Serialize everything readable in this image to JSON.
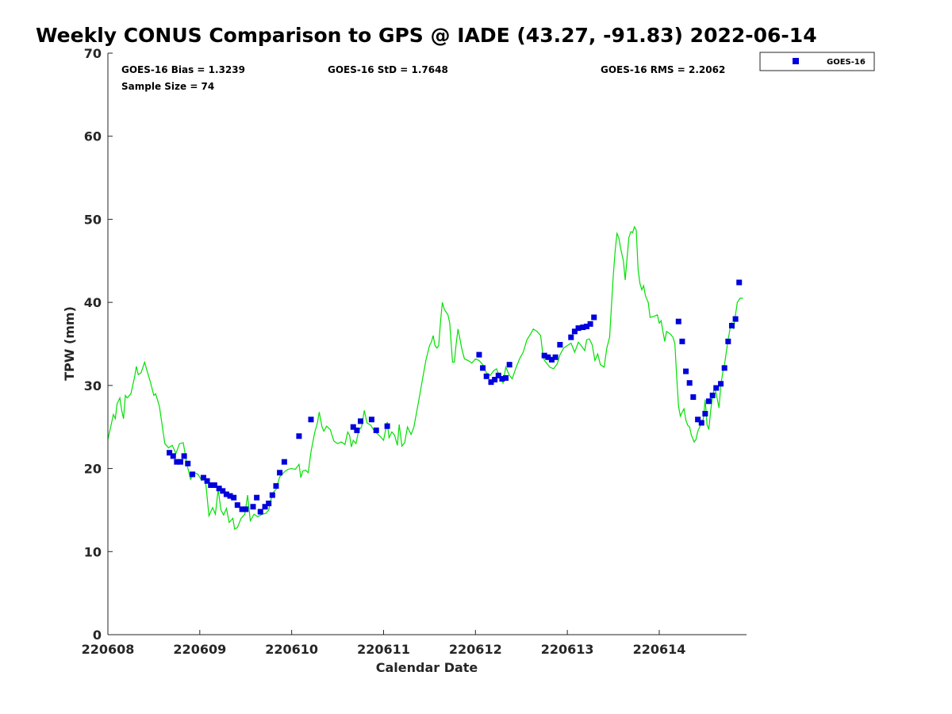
{
  "chart_data": {
    "type": "scatter",
    "title": "Weekly CONUS Comparison to GPS @ IADE (43.27, -91.83) 2022-06-14",
    "xlabel": "Calendar Date",
    "ylabel": "TPW (mm)",
    "xlim": [
      0,
      6.95
    ],
    "ylim": [
      0,
      70
    ],
    "x_tick_values": [
      0,
      1,
      2,
      3,
      4,
      5,
      6
    ],
    "x_tick_labels": [
      "220608",
      "220609",
      "220610",
      "220611",
      "220612",
      "220613",
      "220614"
    ],
    "y_ticks": [
      0,
      10,
      20,
      30,
      40,
      50,
      60,
      70
    ],
    "x_unit_note": "days from 220608 00Z",
    "stats": {
      "bias": "GOES-16 Bias = 1.3239",
      "std": "GOES-16 StD = 1.7648",
      "rms": "GOES-16 RMS = 2.2062",
      "sample": "Sample Size = 74"
    },
    "legend": {
      "label": "GOES-16",
      "position": "outside-top-right"
    },
    "colors": {
      "series": "#0000dd",
      "gps_line": "#00e000"
    },
    "series": [
      {
        "name": "GOES-16",
        "marker": "square",
        "points": [
          [
            0.67,
            21.9
          ],
          [
            0.71,
            21.5
          ],
          [
            0.75,
            20.8
          ],
          [
            0.79,
            20.8
          ],
          [
            0.83,
            21.5
          ],
          [
            0.87,
            20.6
          ],
          [
            0.92,
            19.3
          ],
          [
            1.04,
            18.9
          ],
          [
            1.08,
            18.5
          ],
          [
            1.12,
            18.0
          ],
          [
            1.16,
            18.0
          ],
          [
            1.21,
            17.6
          ],
          [
            1.25,
            17.3
          ],
          [
            1.29,
            16.9
          ],
          [
            1.33,
            16.7
          ],
          [
            1.37,
            16.5
          ],
          [
            1.41,
            15.6
          ],
          [
            1.46,
            15.1
          ],
          [
            1.5,
            15.1
          ],
          [
            1.58,
            15.4
          ],
          [
            1.62,
            16.5
          ],
          [
            1.66,
            14.8
          ],
          [
            1.71,
            15.4
          ],
          [
            1.75,
            15.8
          ],
          [
            1.79,
            16.8
          ],
          [
            1.83,
            17.9
          ],
          [
            1.87,
            19.5
          ],
          [
            1.92,
            20.8
          ],
          [
            2.08,
            23.9
          ],
          [
            2.21,
            25.9
          ],
          [
            2.67,
            25.0
          ],
          [
            2.71,
            24.6
          ],
          [
            2.75,
            25.7
          ],
          [
            2.87,
            25.9
          ],
          [
            2.92,
            24.6
          ],
          [
            3.04,
            25.1
          ],
          [
            4.04,
            33.7
          ],
          [
            4.08,
            32.1
          ],
          [
            4.12,
            31.1
          ],
          [
            4.17,
            30.4
          ],
          [
            4.21,
            30.7
          ],
          [
            4.25,
            31.2
          ],
          [
            4.29,
            30.8
          ],
          [
            4.33,
            30.9
          ],
          [
            4.37,
            32.5
          ],
          [
            4.75,
            33.6
          ],
          [
            4.79,
            33.4
          ],
          [
            4.83,
            33.1
          ],
          [
            4.87,
            33.4
          ],
          [
            4.92,
            34.9
          ],
          [
            5.04,
            35.8
          ],
          [
            5.08,
            36.5
          ],
          [
            5.12,
            36.9
          ],
          [
            5.17,
            37.0
          ],
          [
            5.21,
            37.1
          ],
          [
            5.25,
            37.4
          ],
          [
            5.29,
            38.2
          ],
          [
            6.21,
            37.7
          ],
          [
            6.25,
            35.3
          ],
          [
            6.29,
            31.7
          ],
          [
            6.33,
            30.3
          ],
          [
            6.37,
            28.6
          ],
          [
            6.42,
            25.9
          ],
          [
            6.46,
            25.5
          ],
          [
            6.5,
            26.6
          ],
          [
            6.54,
            28.1
          ],
          [
            6.58,
            28.8
          ],
          [
            6.62,
            29.7
          ],
          [
            6.67,
            30.2
          ],
          [
            6.71,
            32.1
          ],
          [
            6.75,
            35.3
          ],
          [
            6.79,
            37.2
          ],
          [
            6.83,
            38.0
          ],
          [
            6.87,
            42.4
          ]
        ]
      },
      {
        "name": "",
        "type": "line",
        "points": [
          [
            0.0,
            23.5
          ],
          [
            0.03,
            25.0
          ],
          [
            0.06,
            26.5
          ],
          [
            0.08,
            26.0
          ],
          [
            0.1,
            27.8
          ],
          [
            0.13,
            28.5
          ],
          [
            0.15,
            27.0
          ],
          [
            0.17,
            26.0
          ],
          [
            0.19,
            28.8
          ],
          [
            0.21,
            28.5
          ],
          [
            0.25,
            29.0
          ],
          [
            0.29,
            31.0
          ],
          [
            0.31,
            32.3
          ],
          [
            0.33,
            31.3
          ],
          [
            0.36,
            31.5
          ],
          [
            0.4,
            32.8
          ],
          [
            0.42,
            32.0
          ],
          [
            0.46,
            30.5
          ],
          [
            0.5,
            28.8
          ],
          [
            0.52,
            29.0
          ],
          [
            0.56,
            27.5
          ],
          [
            0.58,
            26.0
          ],
          [
            0.62,
            23.0
          ],
          [
            0.66,
            22.5
          ],
          [
            0.7,
            22.8
          ],
          [
            0.74,
            21.8
          ],
          [
            0.78,
            23.0
          ],
          [
            0.82,
            23.1
          ],
          [
            0.86,
            20.5
          ],
          [
            0.9,
            18.7
          ],
          [
            0.94,
            19.5
          ],
          [
            0.98,
            19.3
          ],
          [
            1.02,
            18.6
          ],
          [
            1.06,
            18.8
          ],
          [
            1.1,
            14.3
          ],
          [
            1.14,
            15.3
          ],
          [
            1.17,
            14.5
          ],
          [
            1.2,
            17.5
          ],
          [
            1.23,
            15.0
          ],
          [
            1.26,
            14.4
          ],
          [
            1.29,
            15.2
          ],
          [
            1.32,
            13.5
          ],
          [
            1.36,
            14.0
          ],
          [
            1.38,
            12.7
          ],
          [
            1.41,
            12.9
          ],
          [
            1.45,
            14.0
          ],
          [
            1.49,
            14.5
          ],
          [
            1.52,
            16.8
          ],
          [
            1.55,
            13.7
          ],
          [
            1.59,
            14.5
          ],
          [
            1.63,
            14.2
          ],
          [
            1.68,
            14.5
          ],
          [
            1.72,
            14.6
          ],
          [
            1.75,
            15.0
          ],
          [
            1.79,
            17.0
          ],
          [
            1.83,
            17.5
          ],
          [
            1.87,
            19.0
          ],
          [
            1.92,
            19.6
          ],
          [
            1.96,
            19.9
          ],
          [
            2.0,
            20.0
          ],
          [
            2.04,
            19.9
          ],
          [
            2.08,
            20.5
          ],
          [
            2.1,
            18.9
          ],
          [
            2.12,
            19.7
          ],
          [
            2.15,
            19.8
          ],
          [
            2.18,
            19.5
          ],
          [
            2.21,
            22.0
          ],
          [
            2.25,
            24.3
          ],
          [
            2.28,
            25.5
          ],
          [
            2.3,
            26.8
          ],
          [
            2.33,
            25.0
          ],
          [
            2.35,
            24.5
          ],
          [
            2.38,
            25.1
          ],
          [
            2.42,
            24.7
          ],
          [
            2.46,
            23.3
          ],
          [
            2.5,
            23.0
          ],
          [
            2.54,
            23.2
          ],
          [
            2.58,
            22.9
          ],
          [
            2.61,
            24.4
          ],
          [
            2.63,
            24.0
          ],
          [
            2.65,
            22.6
          ],
          [
            2.67,
            23.4
          ],
          [
            2.7,
            23.0
          ],
          [
            2.73,
            24.6
          ],
          [
            2.76,
            25.0
          ],
          [
            2.79,
            27.0
          ],
          [
            2.82,
            25.5
          ],
          [
            2.86,
            25.2
          ],
          [
            2.89,
            24.7
          ],
          [
            2.92,
            24.3
          ],
          [
            2.96,
            23.9
          ],
          [
            3.0,
            23.4
          ],
          [
            3.04,
            25.6
          ],
          [
            3.06,
            23.7
          ],
          [
            3.09,
            24.4
          ],
          [
            3.12,
            24.0
          ],
          [
            3.15,
            22.8
          ],
          [
            3.17,
            25.3
          ],
          [
            3.2,
            22.7
          ],
          [
            3.23,
            23.1
          ],
          [
            3.26,
            25.0
          ],
          [
            3.3,
            24.1
          ],
          [
            3.33,
            25.0
          ],
          [
            3.38,
            28.0
          ],
          [
            3.42,
            30.5
          ],
          [
            3.46,
            33.0
          ],
          [
            3.5,
            34.8
          ],
          [
            3.52,
            35.2
          ],
          [
            3.54,
            36.0
          ],
          [
            3.56,
            34.8
          ],
          [
            3.58,
            34.5
          ],
          [
            3.6,
            34.8
          ],
          [
            3.62,
            37.7
          ],
          [
            3.64,
            40.0
          ],
          [
            3.66,
            39.2
          ],
          [
            3.7,
            38.5
          ],
          [
            3.72,
            37.5
          ],
          [
            3.75,
            32.8
          ],
          [
            3.77,
            32.8
          ],
          [
            3.79,
            35.0
          ],
          [
            3.81,
            36.8
          ],
          [
            3.83,
            35.7
          ],
          [
            3.85,
            34.5
          ],
          [
            3.88,
            33.2
          ],
          [
            3.92,
            33.0
          ],
          [
            3.96,
            32.7
          ],
          [
            4.0,
            33.2
          ],
          [
            4.04,
            33.0
          ],
          [
            4.08,
            32.5
          ],
          [
            4.12,
            31.5
          ],
          [
            4.16,
            31.2
          ],
          [
            4.2,
            31.8
          ],
          [
            4.23,
            32.0
          ],
          [
            4.27,
            30.8
          ],
          [
            4.3,
            30.3
          ],
          [
            4.33,
            32.2
          ],
          [
            4.37,
            31.2
          ],
          [
            4.4,
            30.8
          ],
          [
            4.44,
            32.1
          ],
          [
            4.48,
            33.2
          ],
          [
            4.52,
            34.0
          ],
          [
            4.56,
            35.5
          ],
          [
            4.6,
            36.2
          ],
          [
            4.63,
            36.8
          ],
          [
            4.67,
            36.5
          ],
          [
            4.71,
            36.0
          ],
          [
            4.73,
            34.0
          ],
          [
            4.75,
            33.0
          ],
          [
            4.78,
            32.6
          ],
          [
            4.81,
            32.2
          ],
          [
            4.85,
            32.0
          ],
          [
            4.89,
            32.6
          ],
          [
            4.92,
            33.7
          ],
          [
            4.96,
            34.5
          ],
          [
            5.0,
            34.8
          ],
          [
            5.04,
            35.1
          ],
          [
            5.08,
            34.0
          ],
          [
            5.12,
            35.2
          ],
          [
            5.15,
            34.8
          ],
          [
            5.19,
            34.2
          ],
          [
            5.21,
            35.5
          ],
          [
            5.24,
            35.6
          ],
          [
            5.27,
            34.9
          ],
          [
            5.3,
            33.0
          ],
          [
            5.33,
            33.8
          ],
          [
            5.36,
            32.5
          ],
          [
            5.4,
            32.2
          ],
          [
            5.43,
            34.5
          ],
          [
            5.46,
            35.8
          ],
          [
            5.48,
            39.5
          ],
          [
            5.5,
            43.3
          ],
          [
            5.52,
            46.2
          ],
          [
            5.54,
            48.3
          ],
          [
            5.56,
            47.8
          ],
          [
            5.58,
            46.5
          ],
          [
            5.61,
            45.0
          ],
          [
            5.63,
            42.7
          ],
          [
            5.65,
            45.3
          ],
          [
            5.67,
            47.8
          ],
          [
            5.69,
            48.5
          ],
          [
            5.71,
            48.4
          ],
          [
            5.73,
            49.1
          ],
          [
            5.75,
            48.7
          ],
          [
            5.77,
            44.0
          ],
          [
            5.79,
            42.3
          ],
          [
            5.81,
            41.5
          ],
          [
            5.83,
            42.0
          ],
          [
            5.85,
            40.8
          ],
          [
            5.88,
            40.0
          ],
          [
            5.9,
            38.2
          ],
          [
            5.94,
            38.3
          ],
          [
            5.98,
            38.5
          ],
          [
            6.0,
            37.5
          ],
          [
            6.02,
            37.8
          ],
          [
            6.04,
            36.5
          ],
          [
            6.06,
            35.3
          ],
          [
            6.08,
            36.5
          ],
          [
            6.12,
            36.2
          ],
          [
            6.15,
            35.8
          ],
          [
            6.17,
            35.0
          ],
          [
            6.19,
            31.0
          ],
          [
            6.21,
            27.5
          ],
          [
            6.23,
            26.3
          ],
          [
            6.25,
            26.8
          ],
          [
            6.27,
            27.2
          ],
          [
            6.29,
            25.8
          ],
          [
            6.31,
            25.2
          ],
          [
            6.33,
            25.0
          ],
          [
            6.35,
            24.0
          ],
          [
            6.38,
            23.2
          ],
          [
            6.4,
            23.5
          ],
          [
            6.42,
            24.5
          ],
          [
            6.44,
            25.0
          ],
          [
            6.46,
            25.5
          ],
          [
            6.48,
            26.0
          ],
          [
            6.5,
            28.3
          ],
          [
            6.52,
            25.3
          ],
          [
            6.54,
            24.7
          ],
          [
            6.56,
            27.0
          ],
          [
            6.58,
            28.5
          ],
          [
            6.6,
            29.8
          ],
          [
            6.62,
            29.0
          ],
          [
            6.65,
            27.3
          ],
          [
            6.67,
            30.0
          ],
          [
            6.69,
            31.5
          ],
          [
            6.71,
            32.5
          ],
          [
            6.73,
            34.0
          ],
          [
            6.75,
            35.5
          ],
          [
            6.77,
            36.8
          ],
          [
            6.79,
            37.5
          ],
          [
            6.81,
            36.8
          ],
          [
            6.83,
            38.5
          ],
          [
            6.85,
            40.0
          ],
          [
            6.88,
            40.5
          ],
          [
            6.91,
            40.5
          ]
        ]
      }
    ]
  }
}
